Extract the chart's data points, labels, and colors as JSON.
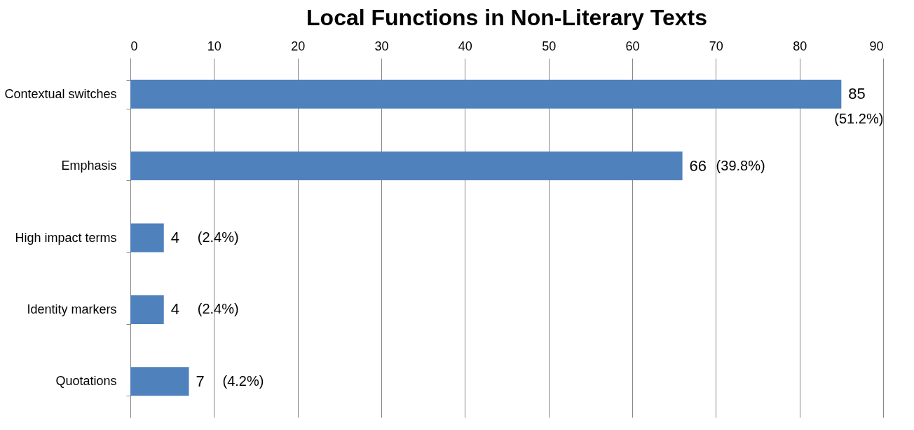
{
  "chart_data": {
    "type": "bar",
    "orientation": "horizontal",
    "title": "Local Functions in Non-Literary Texts",
    "categories": [
      "Contextual switches",
      "Emphasis",
      "High impact terms",
      "Identity markers",
      "Quotations"
    ],
    "values": [
      85,
      66,
      4,
      4,
      7
    ],
    "color": "#4f81bd",
    "data_labels": true,
    "xlim": [
      0,
      90
    ],
    "xticks": [
      0,
      10,
      20,
      30,
      40,
      50,
      60,
      70,
      80,
      90
    ],
    "grid": "x",
    "annotations": [
      {
        "text": "(51.2%)",
        "x": 85,
        "y": "Contextual switches"
      },
      {
        "text": "(39.8%)",
        "x": 66,
        "y": "Emphasis"
      },
      {
        "text": "(2.4%)",
        "x": 4,
        "y": "High impact terms"
      },
      {
        "text": "(2.4%)",
        "x": 4,
        "y": "Identity markers"
      },
      {
        "text": "(4.2%)",
        "x": 7,
        "y": "Quotations"
      }
    ]
  }
}
